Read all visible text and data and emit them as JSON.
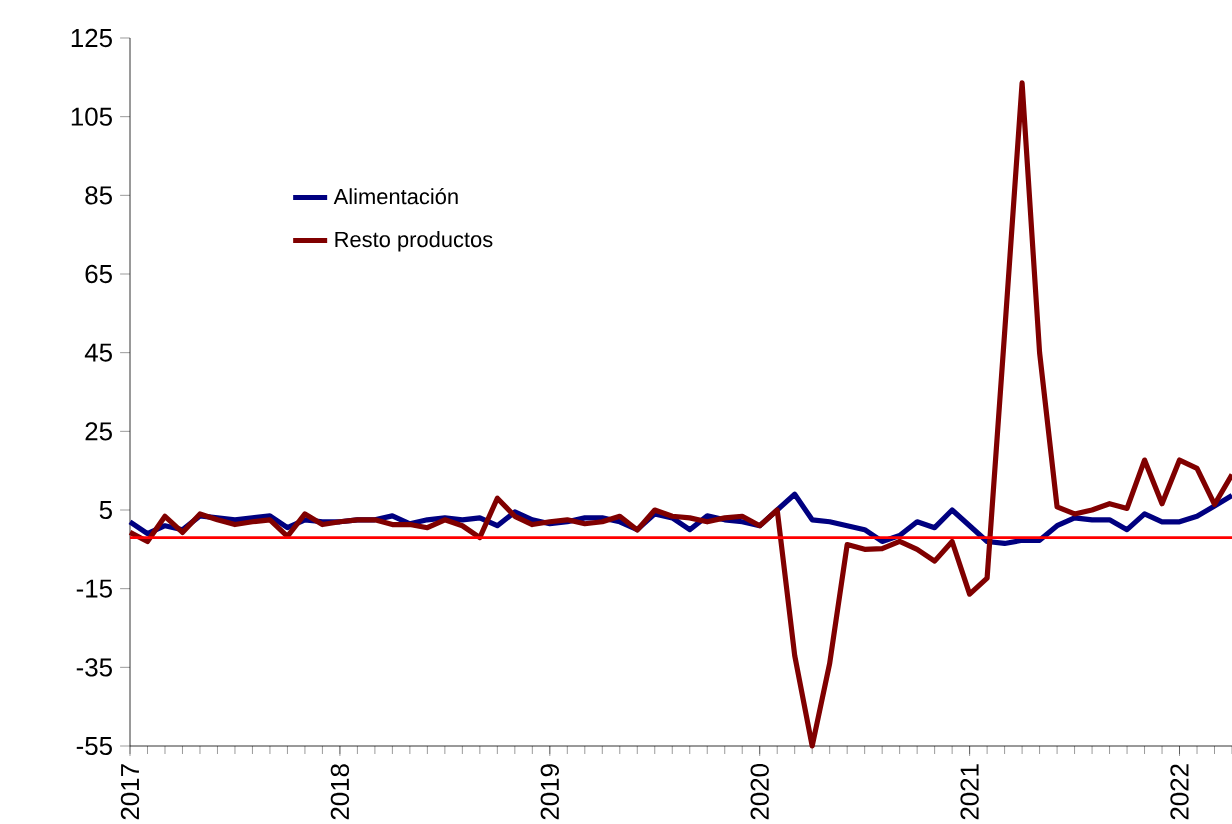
{
  "chart_data": {
    "type": "line",
    "x": [
      "2017-01",
      "2017-02",
      "2017-03",
      "2017-04",
      "2017-05",
      "2017-06",
      "2017-07",
      "2017-08",
      "2017-09",
      "2017-10",
      "2017-11",
      "2017-12",
      "2018-01",
      "2018-02",
      "2018-03",
      "2018-04",
      "2018-05",
      "2018-06",
      "2018-07",
      "2018-08",
      "2018-09",
      "2018-10",
      "2018-11",
      "2018-12",
      "2019-01",
      "2019-02",
      "2019-03",
      "2019-04",
      "2019-05",
      "2019-06",
      "2019-07",
      "2019-08",
      "2019-09",
      "2019-10",
      "2019-11",
      "2019-12",
      "2020-01",
      "2020-02",
      "2020-03",
      "2020-04",
      "2020-05",
      "2020-06",
      "2020-07",
      "2020-08",
      "2020-09",
      "2020-10",
      "2020-11",
      "2020-12",
      "2021-01",
      "2021-02",
      "2021-03",
      "2021-04",
      "2021-05",
      "2021-06",
      "2021-07",
      "2021-08",
      "2021-09",
      "2021-10",
      "2021-11",
      "2021-12",
      "2022-01",
      "2022-02",
      "2022-03",
      "2022-04"
    ],
    "series": [
      {
        "name": "Alimentación",
        "color": "#000080",
        "values": [
          2,
          -1,
          1,
          0,
          3.5,
          3,
          2.5,
          3,
          3.5,
          0.5,
          2.5,
          2,
          2,
          2.5,
          2.5,
          3.5,
          1.5,
          2.5,
          3,
          2.5,
          3,
          1,
          4.5,
          2.5,
          1.5,
          2,
          3,
          3,
          2,
          0,
          4,
          3,
          0,
          3.5,
          2.5,
          2,
          1,
          5,
          9,
          2.5,
          2,
          1,
          0,
          -3,
          -1.5,
          2,
          0.5,
          5,
          1,
          -3,
          -3.5,
          -2.7,
          -2.7,
          1,
          3,
          2.5,
          2.5,
          0,
          4,
          2,
          2,
          3.4,
          6,
          8.7
        ]
      },
      {
        "name": "Resto productos",
        "color": "#800000",
        "values": [
          -0.7,
          -3,
          3.4,
          -0.7,
          4,
          2.5,
          1.3,
          2,
          2.5,
          -1.7,
          4,
          1.3,
          2,
          2.5,
          2.5,
          1.3,
          1.3,
          0.5,
          2.5,
          1,
          -2,
          8,
          3.4,
          1.3,
          2,
          2.5,
          1.5,
          2,
          3.4,
          -0.1,
          5,
          3.4,
          3,
          2,
          3,
          3.4,
          1,
          5,
          -32,
          -55,
          -34,
          -3.8,
          -5,
          -4.8,
          -3,
          -5,
          -8,
          -3,
          -16.4,
          -12.3,
          50,
          113.6,
          45,
          5.8,
          4,
          5,
          6.6,
          5.4,
          17.7,
          6.6,
          17.7,
          15.6,
          6.4,
          14
        ]
      }
    ],
    "xlim": [
      "2017-01",
      "2022-04"
    ],
    "xticks": [
      "2017",
      "2018",
      "2019",
      "2020",
      "2021",
      "2022"
    ],
    "ylim": [
      -55,
      125
    ],
    "yticks": [
      -55,
      -35,
      -15,
      5,
      25,
      45,
      65,
      85,
      105,
      125
    ],
    "ref_lines": [
      {
        "axis": "y",
        "value": -2,
        "color": "#ff0000"
      }
    ],
    "legend": "top left",
    "grid": false
  }
}
